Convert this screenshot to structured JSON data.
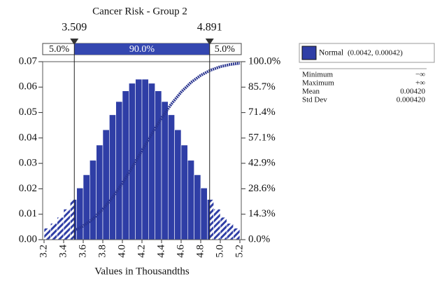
{
  "chart_data": {
    "type": "histogram",
    "title": "Cancer Risk - Group 2",
    "x_label": "Values in Thousandths",
    "bins": [
      3.2,
      3.2667,
      3.3333,
      3.4,
      3.4667,
      3.5333,
      3.6,
      3.6667,
      3.7333,
      3.8,
      3.8667,
      3.9333,
      4.0,
      4.0667,
      4.1333,
      4.2,
      4.2667,
      4.3333,
      4.4,
      4.4667,
      4.5333,
      4.6,
      4.6667,
      4.7333,
      4.8,
      4.8667,
      4.9333,
      5.0,
      5.0667,
      5.1333,
      5.2
    ],
    "values": [
      0.0045,
      0.0064,
      0.0088,
      0.012,
      0.0158,
      0.0203,
      0.0255,
      0.0312,
      0.0372,
      0.0432,
      0.0491,
      0.0543,
      0.0585,
      0.0615,
      0.0631,
      0.0631,
      0.0615,
      0.0585,
      0.0543,
      0.0491,
      0.0432,
      0.0372,
      0.0312,
      0.0255,
      0.0203,
      0.0158,
      0.012,
      0.0088,
      0.0064,
      0.0045
    ],
    "color": "#2f3ea6",
    "xlim": [
      3.2,
      5.2
    ],
    "xticks": [
      3.2,
      3.4,
      3.6,
      3.8,
      {
        "value": 4,
        "label": "4.0"
      },
      4.2,
      4.4,
      4.6,
      4.8,
      {
        "value": 5,
        "label": "5.0"
      },
      5.2
    ],
    "ylim": [
      0,
      0.07
    ],
    "yticks": [
      {
        "value": 0,
        "label": "0.00"
      },
      {
        "value": 0.01,
        "label": "0.01"
      },
      {
        "value": 0.02,
        "label": "0.02"
      },
      {
        "value": 0.03,
        "label": "0.03"
      },
      {
        "value": 0.04,
        "label": "0.04"
      },
      {
        "value": 0.05,
        "label": "0.05"
      },
      {
        "value": 0.06,
        "label": "0.06"
      },
      {
        "value": 0.07,
        "label": "0.07"
      }
    ],
    "y2lim": [
      0,
      100
    ],
    "y2ticks": [
      {
        "value": 0,
        "label": "0.0%"
      },
      {
        "value": 14.3,
        "label": "14.3%"
      },
      {
        "value": 28.6,
        "label": "28.6%"
      },
      {
        "value": 42.9,
        "label": "42.9%"
      },
      {
        "value": 57.1,
        "label": "57.1%"
      },
      {
        "value": 71.4,
        "label": "71.4%"
      },
      {
        "value": 85.7,
        "label": "85.7%"
      },
      {
        "value": 100,
        "label": "100.0%"
      }
    ],
    "cumulative": {
      "axis": "y2",
      "color": "#2a3590",
      "x": [
        3.509,
        3.6,
        3.7,
        3.8,
        3.9,
        4.0,
        4.1,
        4.2,
        4.3,
        4.4,
        4.5,
        4.6,
        4.7,
        4.8,
        4.9,
        5.0,
        5.1,
        5.2
      ],
      "values": [
        5.0,
        7.7,
        11.7,
        17.1,
        23.8,
        31.7,
        40.6,
        50,
        59.4,
        68.3,
        76.2,
        82.9,
        88.3,
        92.3,
        95.2,
        97.2,
        98.4,
        99.1
      ]
    },
    "delimiters": [
      3.509,
      4.891
    ],
    "band": {
      "values": [
        5.0,
        90.0,
        5.0
      ],
      "value_labels": [
        "5.0%",
        "90.0%",
        "5.0%"
      ]
    },
    "legend": {
      "name": "Normal",
      "params": "(0.0042, 0.00042)",
      "stats": [
        {
          "label": "Minimum",
          "value": "−∞"
        },
        {
          "label": "Maximum",
          "value": "+∞"
        },
        {
          "label": "Mean",
          "value": "0.00420"
        },
        {
          "label": "Std Dev",
          "value": "0.000420"
        }
      ]
    }
  }
}
